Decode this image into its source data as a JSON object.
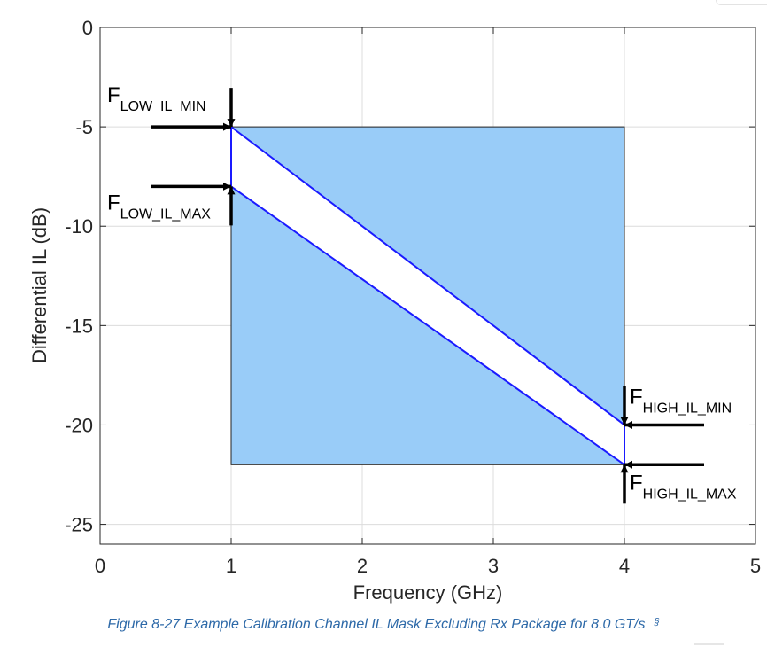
{
  "chart_data": {
    "type": "area",
    "title": "",
    "xlabel": "Frequency (GHz)",
    "ylabel": "Differential IL (dB)",
    "xlim": [
      0,
      5
    ],
    "ylim": [
      -26,
      0
    ],
    "xticks": [
      0,
      1,
      2,
      3,
      4,
      5
    ],
    "yticks": [
      0,
      -5,
      -10,
      -15,
      -20,
      -25
    ],
    "xtick_labels": [
      "0",
      "1",
      "2",
      "3",
      "4",
      "5"
    ],
    "ytick_labels": [
      "0",
      "-5",
      "-10",
      "-15",
      "-20",
      "-25"
    ],
    "grid": true,
    "mask_region": {
      "x": [
        1,
        4
      ],
      "y": [
        -22,
        -5
      ],
      "fill": "#99ccf8"
    },
    "allowed_band": {
      "upper": {
        "x": [
          1,
          4
        ],
        "y": [
          -5,
          -20
        ]
      },
      "lower": {
        "x": [
          1,
          4
        ],
        "y": [
          -8,
          -22
        ]
      },
      "line_color": "#1a1aff"
    },
    "annotations": [
      {
        "main": "F",
        "sub": "LOW_IL_MIN",
        "x": 1,
        "y": -5
      },
      {
        "main": "F",
        "sub": "LOW_IL_MAX",
        "x": 1,
        "y": -8
      },
      {
        "main": "F",
        "sub": "HIGH_IL_MIN",
        "x": 4,
        "y": -20
      },
      {
        "main": "F",
        "sub": "HIGH_IL_MAX",
        "x": 4,
        "y": -22
      }
    ]
  },
  "caption": {
    "text": "Figure 8-27 Example Calibration Channel IL Mask Excluding Rx Package for 8.0 GT/s",
    "symbol": "§"
  }
}
